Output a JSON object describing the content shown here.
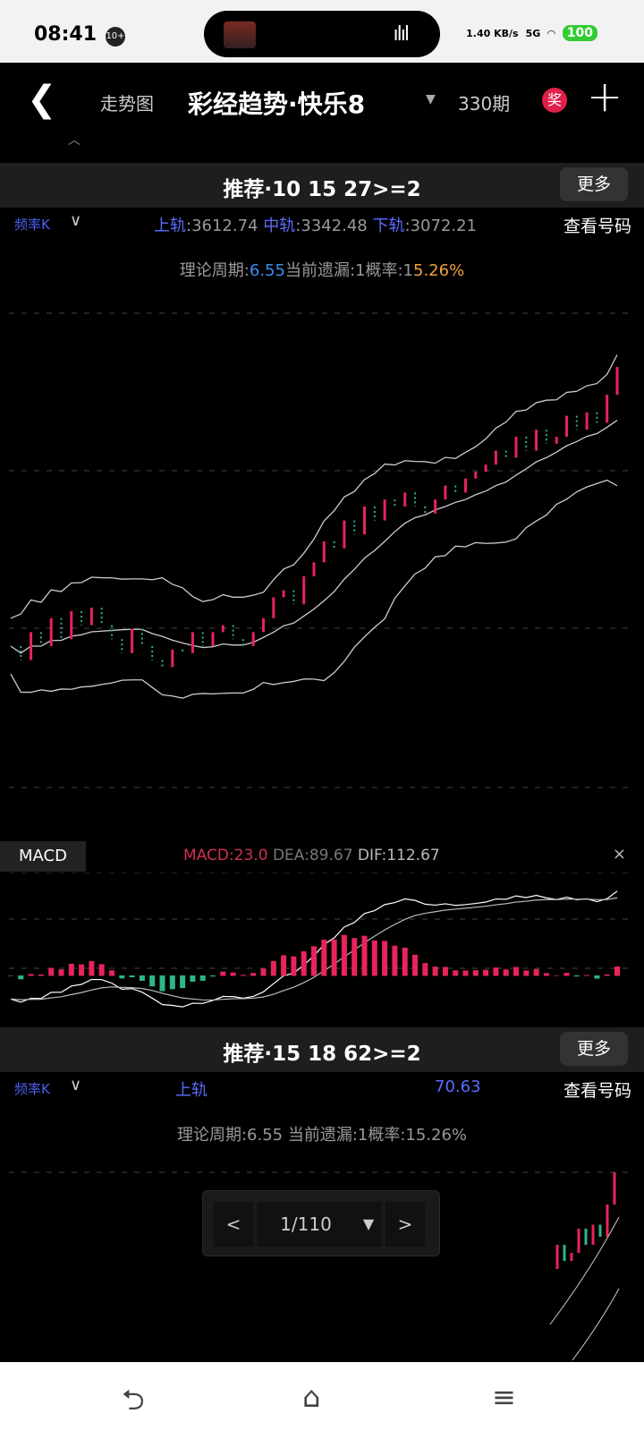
{
  "status": {
    "time": "08:41",
    "notif_badge": "10+",
    "net_speed": "1.40 KB/s",
    "network": "5G",
    "battery": "100"
  },
  "nav": {
    "back_icon": "chevron-left-icon",
    "trend_label": "走势图",
    "title": "彩经趋势·快乐8",
    "caret": "▼",
    "issue": "330期",
    "prize_badge": "奖",
    "add_icon": "plus-icon"
  },
  "panel1": {
    "recommend": "推荐·10 15 27>=2",
    "more": "更多",
    "freq_label": "频率K",
    "upper_label": "上轨",
    "upper_value": ":3612.74",
    "mid_label": "中轨",
    "mid_value": ":3342.48",
    "lower_label": "下轨",
    "lower_value": ":3072.21",
    "view_numbers": "查看号码",
    "period_label": "理论周期:",
    "period_value": "6.55",
    "miss_label": "当前遗漏:1概率:1",
    "prob_value": "5.26%"
  },
  "macd": {
    "label": "MACD",
    "macd": "MACD:23.0",
    "dea": "DEA:89.67",
    "dif": "DIF:112.67",
    "close": "×"
  },
  "panel2": {
    "recommend": "推荐·15 18 62>=2",
    "more": "更多",
    "freq_label": "频率K",
    "upper_label": "上轨",
    "lower_value_partial": "70.63",
    "view_numbers": "查看号码",
    "period_text": "理论周期:6.55 当前遗漏:1概率:15.26%"
  },
  "pager": {
    "prev": "<",
    "page": "1/110",
    "dropdown": "▼",
    "next": ">"
  },
  "bottom_nav": {
    "back": "⮌",
    "home": "⌂",
    "menu": "≡"
  },
  "colors": {
    "up": "#e8245a",
    "down": "#2fb58a",
    "band": "#cccccc",
    "accent_blue": "#3a8cf0",
    "accent_orange": "#f0a040"
  },
  "chart_data": {
    "type": "line",
    "series": [
      {
        "values": [
          100,
          80,
          120,
          100,
          140,
          110,
          150,
          130,
          155,
          130,
          110,
          90,
          125,
          100,
          80,
          70,
          95,
          90,
          120,
          100,
          120,
          130,
          110,
          100,
          120,
          140,
          170,
          180,
          160,
          200,
          220,
          250,
          240,
          280,
          260,
          300,
          280,
          310,
          300,
          320,
          300,
          290,
          310,
          330,
          320,
          340,
          350,
          360,
          380,
          370,
          400,
          380,
          410,
          390,
          400,
          430,
          410,
          435,
          420,
          460,
          500
        ]
      }
    ],
    "grid": true
  }
}
